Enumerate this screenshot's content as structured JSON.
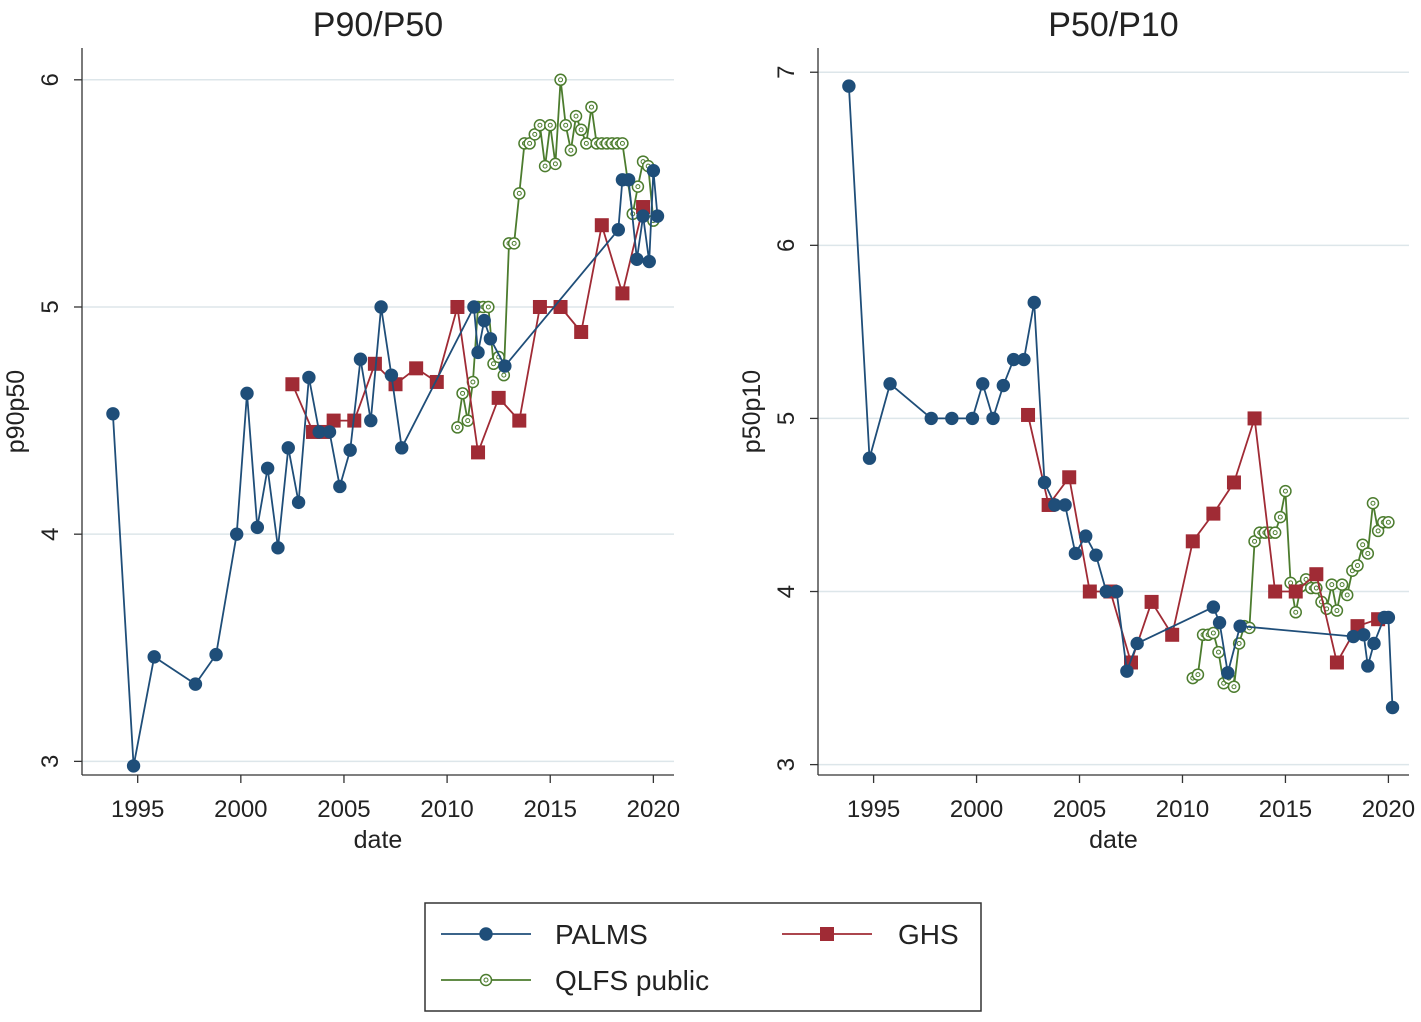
{
  "chart_data": [
    {
      "type": "line",
      "title": "P90/P50",
      "xlabel": "date",
      "ylabel": "p90p50",
      "xlim": [
        1992.3,
        2021.0
      ],
      "ylim": [
        2.94,
        6.14
      ],
      "xticks": [
        1995,
        2000,
        2005,
        2010,
        2015,
        2020
      ],
      "yticks": [
        3,
        4,
        5,
        6
      ],
      "grid": "horizontal",
      "series": [
        {
          "name": "PALMS",
          "color": "#1f4e79",
          "marker": "circle-filled",
          "x": [
            1993.8,
            1994.8,
            1995.8,
            1997.8,
            1998.8,
            1999.8,
            2000.3,
            2000.8,
            2001.3,
            2001.8,
            2002.3,
            2002.8,
            2003.3,
            2003.8,
            2004.3,
            2004.8,
            2005.3,
            2005.8,
            2006.3,
            2006.8,
            2007.3,
            2007.8,
            2011.3,
            2011.5,
            2011.8,
            2012.1,
            2012.8,
            2018.3,
            2018.5,
            2018.8,
            2019.2,
            2019.5,
            2019.8,
            2020.0,
            2020.2
          ],
          "y": [
            4.53,
            2.98,
            3.46,
            3.34,
            3.47,
            4.0,
            4.62,
            4.03,
            4.29,
            3.94,
            4.38,
            4.14,
            4.69,
            4.45,
            4.45,
            4.21,
            4.37,
            4.77,
            4.5,
            5.0,
            4.7,
            4.38,
            5.0,
            4.8,
            4.94,
            4.86,
            4.74,
            5.34,
            5.56,
            5.56,
            5.21,
            5.4,
            5.2,
            5.6,
            5.4
          ]
        },
        {
          "name": "GHS",
          "color": "#a02b35",
          "marker": "square-filled",
          "x": [
            2002.5,
            2003.5,
            2004.0,
            2004.5,
            2005.5,
            2006.5,
            2007.5,
            2008.5,
            2009.5,
            2010.5,
            2011.5,
            2012.5,
            2013.5,
            2014.5,
            2015.5,
            2016.5,
            2017.5,
            2018.5,
            2019.5
          ],
          "y": [
            4.66,
            4.45,
            4.45,
            4.5,
            4.5,
            4.75,
            4.66,
            4.73,
            4.67,
            5.0,
            4.36,
            4.6,
            4.5,
            5.0,
            5.0,
            4.89,
            5.36,
            5.06,
            5.44
          ]
        },
        {
          "name": "QLFS public",
          "color": "#4c7c2e",
          "marker": "circle-hollow",
          "x": [
            2010.5,
            2010.75,
            2011.0,
            2011.25,
            2011.5,
            2011.75,
            2012.0,
            2012.25,
            2012.5,
            2012.75,
            2013.0,
            2013.25,
            2013.5,
            2013.75,
            2014.0,
            2014.25,
            2014.5,
            2014.75,
            2015.0,
            2015.25,
            2015.5,
            2015.75,
            2016.0,
            2016.25,
            2016.5,
            2016.75,
            2017.0,
            2017.25,
            2017.5,
            2017.75,
            2018.0,
            2018.25,
            2018.5,
            2018.75,
            2019.0,
            2019.25,
            2019.5,
            2019.75,
            2020.0
          ],
          "y": [
            4.47,
            4.62,
            4.5,
            4.67,
            5.0,
            5.0,
            5.0,
            4.75,
            4.78,
            4.7,
            5.28,
            5.28,
            5.5,
            5.72,
            5.72,
            5.76,
            5.8,
            5.62,
            5.8,
            5.63,
            6.0,
            5.8,
            5.69,
            5.84,
            5.78,
            5.72,
            5.88,
            5.72,
            5.72,
            5.72,
            5.72,
            5.72,
            5.72,
            5.56,
            5.41,
            5.53,
            5.64,
            5.62,
            5.38
          ]
        }
      ]
    },
    {
      "type": "line",
      "title": "P50/P10",
      "xlabel": "date",
      "ylabel": "p50p10",
      "xlim": [
        1992.3,
        2021.0
      ],
      "ylim": [
        2.94,
        7.14
      ],
      "xticks": [
        1995,
        2000,
        2005,
        2010,
        2015,
        2020
      ],
      "yticks": [
        3,
        4,
        5,
        6,
        7
      ],
      "grid": "horizontal",
      "series": [
        {
          "name": "PALMS",
          "color": "#1f4e79",
          "marker": "circle-filled",
          "x": [
            1993.8,
            1994.8,
            1995.8,
            1997.8,
            1998.8,
            1999.8,
            2000.3,
            2000.8,
            2001.3,
            2001.8,
            2002.3,
            2002.8,
            2003.3,
            2003.8,
            2004.3,
            2004.8,
            2005.3,
            2005.8,
            2006.3,
            2006.8,
            2007.3,
            2007.8,
            2011.5,
            2011.8,
            2012.2,
            2012.8,
            2018.3,
            2018.8,
            2019.0,
            2019.3,
            2019.8,
            2020.0,
            2020.2
          ],
          "y": [
            6.92,
            4.77,
            5.2,
            5.0,
            5.0,
            5.0,
            5.2,
            5.0,
            5.19,
            5.34,
            5.34,
            5.67,
            4.63,
            4.5,
            4.5,
            4.22,
            4.32,
            4.21,
            4.0,
            4.0,
            3.54,
            3.7,
            3.91,
            3.82,
            3.53,
            3.8,
            3.74,
            3.75,
            3.57,
            3.7,
            3.85,
            3.85,
            3.33
          ]
        },
        {
          "name": "GHS",
          "color": "#a02b35",
          "marker": "square-filled",
          "x": [
            2002.5,
            2003.5,
            2004.5,
            2005.5,
            2006.5,
            2007.5,
            2008.5,
            2009.5,
            2010.5,
            2011.5,
            2012.5,
            2013.5,
            2014.5,
            2015.5,
            2016.5,
            2017.5,
            2018.5,
            2019.5
          ],
          "y": [
            5.02,
            4.5,
            4.66,
            4.0,
            4.0,
            3.59,
            3.94,
            3.75,
            4.29,
            4.45,
            4.63,
            5.0,
            4.0,
            4.0,
            4.1,
            3.59,
            3.8,
            3.84
          ]
        },
        {
          "name": "QLFS public",
          "color": "#4c7c2e",
          "marker": "circle-hollow",
          "x": [
            2010.5,
            2010.75,
            2011.0,
            2011.25,
            2011.5,
            2011.75,
            2012.0,
            2012.25,
            2012.5,
            2012.75,
            2013.0,
            2013.25,
            2013.5,
            2013.75,
            2014.0,
            2014.25,
            2014.5,
            2014.75,
            2015.0,
            2015.25,
            2015.5,
            2015.75,
            2016.0,
            2016.25,
            2016.5,
            2016.75,
            2017.0,
            2017.25,
            2017.5,
            2017.75,
            2018.0,
            2018.25,
            2018.5,
            2018.75,
            2019.0,
            2019.25,
            2019.5,
            2019.75,
            2020.0
          ],
          "y": [
            3.5,
            3.52,
            3.75,
            3.75,
            3.76,
            3.65,
            3.47,
            3.5,
            3.45,
            3.7,
            3.8,
            3.79,
            4.29,
            4.34,
            4.34,
            4.34,
            4.34,
            4.43,
            4.58,
            4.05,
            3.88,
            4.03,
            4.07,
            4.02,
            4.02,
            3.94,
            3.9,
            4.04,
            3.89,
            4.04,
            3.98,
            4.12,
            4.15,
            4.27,
            4.22,
            4.51,
            4.35,
            4.4,
            4.4
          ]
        }
      ]
    }
  ],
  "legend": {
    "placement": "bottom-center",
    "items": [
      {
        "label": "PALMS",
        "color": "#1f4e79",
        "marker": "circle-filled"
      },
      {
        "label": "GHS",
        "color": "#a02b35",
        "marker": "square-filled"
      },
      {
        "label": "QLFS public",
        "color": "#4c7c2e",
        "marker": "circle-hollow"
      }
    ]
  },
  "colors": {
    "grid": "#dde6ea",
    "axis": "#333333",
    "text": "#222222"
  }
}
